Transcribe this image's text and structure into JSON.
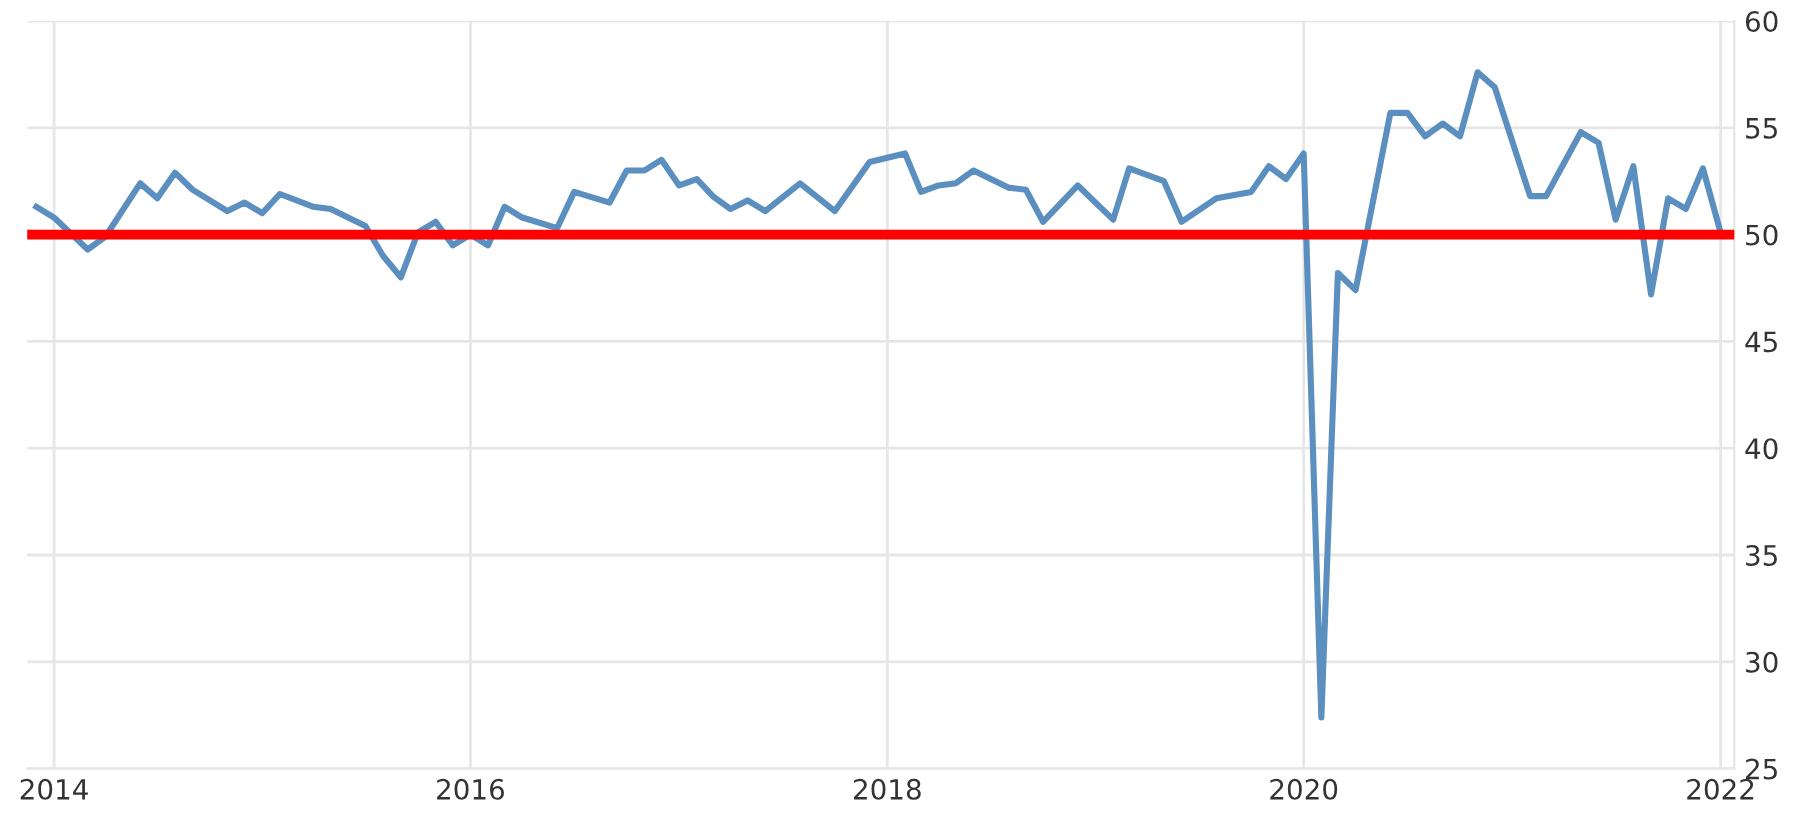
{
  "chart_data": {
    "type": "line",
    "x": [
      "2013-12",
      "2014-01",
      "2014-03",
      "2014-04",
      "2014-06",
      "2014-07",
      "2014-08",
      "2014-09",
      "2014-11",
      "2014-12",
      "2015-01",
      "2015-02",
      "2015-04",
      "2015-05",
      "2015-07",
      "2015-08",
      "2015-09",
      "2015-10",
      "2015-11",
      "2015-12",
      "2016-01",
      "2016-02",
      "2016-03",
      "2016-04",
      "2016-06",
      "2016-07",
      "2016-09",
      "2016-10",
      "2016-11",
      "2016-12",
      "2017-01",
      "2017-02",
      "2017-03",
      "2017-04",
      "2017-05",
      "2017-06",
      "2017-08",
      "2017-10",
      "2017-12",
      "2018-02",
      "2018-03",
      "2018-04",
      "2018-05",
      "2018-06",
      "2018-08",
      "2018-09",
      "2018-10",
      "2018-12",
      "2019-02",
      "2019-03",
      "2019-05",
      "2019-06",
      "2019-08",
      "2019-10",
      "2019-11",
      "2019-12",
      "2020-01",
      "2020-02",
      "2020-03",
      "2020-04",
      "2020-06",
      "2020-07",
      "2020-08",
      "2020-09",
      "2020-10",
      "2020-11",
      "2020-12",
      "2021-02",
      "2021-03",
      "2021-05",
      "2021-06",
      "2021-07",
      "2021-08",
      "2021-09",
      "2021-10",
      "2021-11",
      "2021-12",
      "2022-01"
    ],
    "series": [
      {
        "color": "#5b8fbf",
        "values": [
          51.3,
          50.8,
          49.3,
          49.9,
          52.4,
          51.7,
          52.9,
          52.1,
          51.1,
          51.5,
          51.0,
          51.9,
          51.3,
          51.2,
          50.4,
          49.0,
          48.0,
          50.1,
          50.6,
          49.5,
          50.0,
          49.5,
          51.3,
          50.8,
          50.3,
          52.0,
          51.5,
          53.0,
          53.0,
          53.5,
          52.3,
          52.6,
          51.8,
          51.2,
          51.6,
          51.1,
          52.4,
          51.1,
          53.4,
          53.8,
          52.0,
          52.3,
          52.4,
          53.0,
          52.2,
          52.1,
          50.6,
          52.3,
          50.7,
          53.1,
          52.5,
          50.6,
          51.7,
          52.0,
          53.2,
          52.6,
          53.8,
          27.4,
          48.2,
          47.4,
          55.7,
          55.7,
          54.6,
          55.2,
          54.6,
          57.6,
          56.9,
          51.8,
          51.8,
          54.8,
          54.3,
          50.7,
          53.2,
          47.2,
          51.7,
          51.2,
          53.1,
          50.1
        ]
      }
    ],
    "xlim": [
      "2013-11-15",
      "2022-01-25"
    ],
    "xticks": [
      {
        "value": "2014-01-01",
        "label": "2014"
      },
      {
        "value": "2016-01-01",
        "label": "2016"
      },
      {
        "value": "2018-01-01",
        "label": "2018"
      },
      {
        "value": "2020-01-01",
        "label": "2020"
      },
      {
        "value": "2022-01-01",
        "label": "2022"
      }
    ],
    "ylim": [
      25,
      60
    ],
    "yticks": [
      25,
      30,
      35,
      40,
      45,
      50,
      55,
      60
    ],
    "grid": true,
    "ref_lines": [
      {
        "axis": "y",
        "value": 50,
        "color": "#ff0000"
      }
    ]
  }
}
